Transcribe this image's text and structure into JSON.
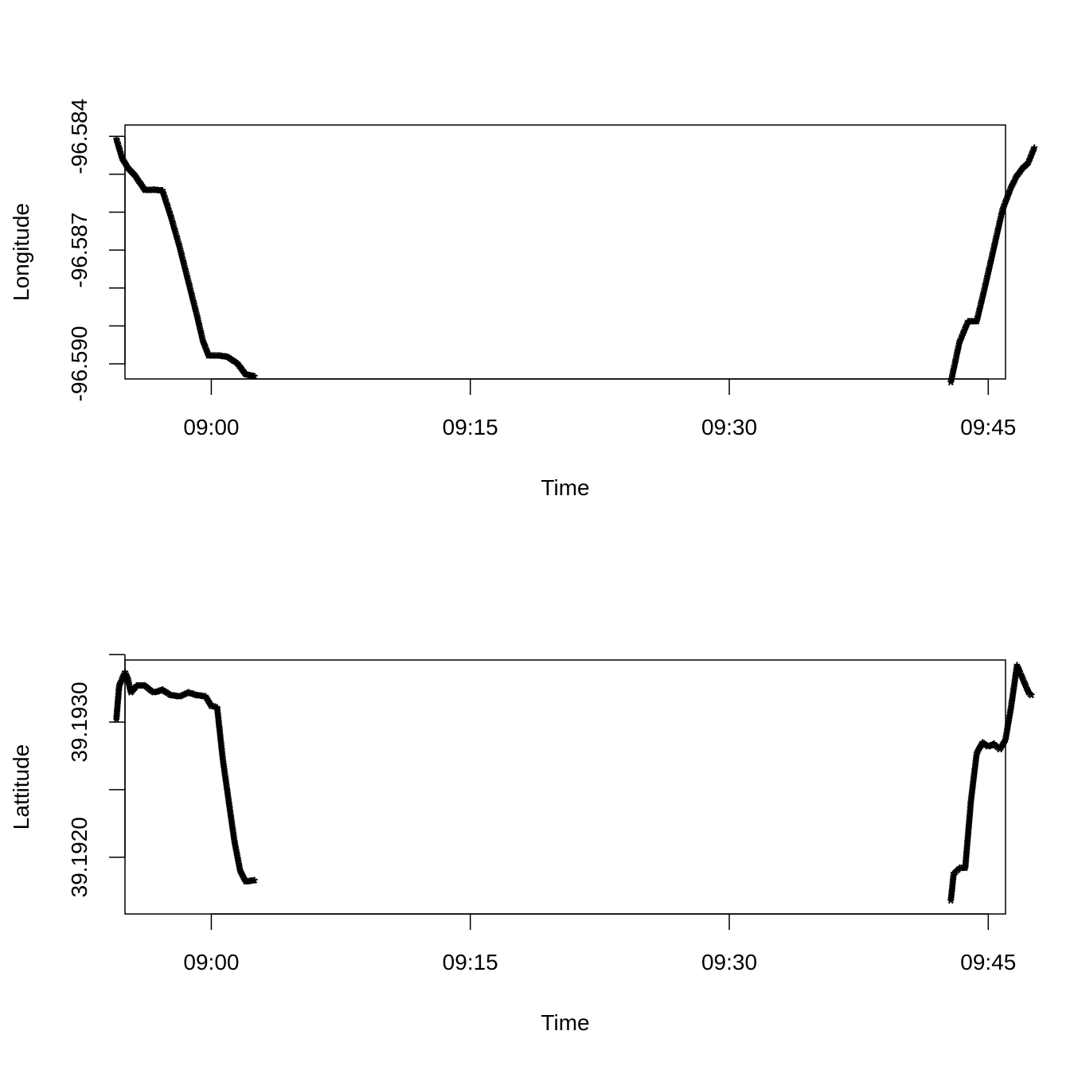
{
  "chart_data": [
    {
      "type": "scatter",
      "marker": "*",
      "xlabel": "Time",
      "ylabel": "Longitude",
      "xlim": [
        "08:55",
        "09:46"
      ],
      "ylim": [
        -96.5904,
        -96.5837
      ],
      "xticks": [
        "09:00",
        "09:15",
        "09:30",
        "09:45"
      ],
      "yticks": [
        {
          "value": -96.584,
          "label": "-96.584"
        },
        {
          "value": -96.585,
          "label": ""
        },
        {
          "value": -96.586,
          "label": ""
        },
        {
          "value": -96.587,
          "label": "-96.587"
        },
        {
          "value": -96.588,
          "label": ""
        },
        {
          "value": -96.589,
          "label": ""
        },
        {
          "value": -96.59,
          "label": "-96.590"
        }
      ],
      "grid": false,
      "series": [
        {
          "points": [
            [
              "08:54:30",
              -96.58414
            ],
            [
              "08:54:50",
              -96.58465
            ],
            [
              "08:55:10",
              -96.5849
            ],
            [
              "08:55:30",
              -96.58505
            ],
            [
              "08:56:10",
              -96.58549
            ],
            [
              "08:56:40",
              -96.58548
            ],
            [
              "08:57:10",
              -96.5855
            ],
            [
              "08:57:40",
              -96.5862
            ],
            [
              "08:58:10",
              -96.587
            ],
            [
              "08:58:40",
              -96.5879
            ],
            [
              "08:59:10",
              -96.5888
            ],
            [
              "08:59:30",
              -96.58945
            ],
            [
              "08:59:50",
              -96.58985
            ],
            [
              "09:00:30",
              -96.58985
            ],
            [
              "09:01:00",
              -96.5899
            ],
            [
              "09:01:30",
              -96.59005
            ],
            [
              "09:02:00",
              -96.59035
            ],
            [
              "09:02:30",
              -96.5904
            ],
            [
              "09:42:50",
              -96.59056
            ],
            [
              "09:43:20",
              -96.5895
            ],
            [
              "09:43:50",
              -96.58895
            ],
            [
              "09:44:20",
              -96.58895
            ],
            [
              "09:44:50",
              -96.588
            ],
            [
              "09:45:20",
              -96.587
            ],
            [
              "09:45:50",
              -96.586
            ],
            [
              "09:46:20",
              -96.5854
            ],
            [
              "09:46:40",
              -96.5851
            ],
            [
              "09:47:00",
              -96.5849
            ],
            [
              "09:47:20",
              -96.58475
            ],
            [
              "09:47:40",
              -96.58437
            ]
          ]
        }
      ]
    },
    {
      "type": "scatter",
      "marker": "*",
      "xlabel": "Time",
      "ylabel": "Lattitude",
      "xlim": [
        "08:55",
        "09:46"
      ],
      "ylim": [
        39.19158,
        39.19346
      ],
      "xticks": [
        "09:00",
        "09:15",
        "09:30",
        "09:45"
      ],
      "yticks": [
        {
          "value": 39.192,
          "label": "39.1920"
        },
        {
          "value": 39.1925,
          "label": ""
        },
        {
          "value": 39.193,
          "label": "39.1930"
        },
        {
          "value": 39.1935,
          "label": ""
        }
      ],
      "grid": false,
      "series": [
        {
          "points": [
            [
              "08:54:30",
              39.193
            ],
            [
              "08:54:40",
              39.19325
            ],
            [
              "08:55:00",
              39.19335
            ],
            [
              "08:55:10",
              39.1933
            ],
            [
              "08:55:20",
              39.1932
            ],
            [
              "08:55:40",
              39.19325
            ],
            [
              "08:56:10",
              39.19325
            ],
            [
              "08:56:40",
              39.1932
            ],
            [
              "08:57:10",
              39.19322
            ],
            [
              "08:57:40",
              39.19318
            ],
            [
              "08:58:10",
              39.19317
            ],
            [
              "08:58:40",
              39.1932
            ],
            [
              "08:59:10",
              39.19318
            ],
            [
              "08:59:40",
              39.19317
            ],
            [
              "09:00:00",
              39.1931
            ],
            [
              "09:00:20",
              39.19309
            ],
            [
              "09:00:40",
              39.1927
            ],
            [
              "09:01:00",
              39.1924
            ],
            [
              "09:01:20",
              39.1921
            ],
            [
              "09:01:40",
              39.19188
            ],
            [
              "09:02:00",
              39.1918
            ],
            [
              "09:02:30",
              39.19181
            ],
            [
              "09:42:50",
              39.19166
            ],
            [
              "09:43:00",
              39.19186
            ],
            [
              "09:43:20",
              39.1919
            ],
            [
              "09:43:40",
              39.1919
            ],
            [
              "09:44:00",
              39.1924
            ],
            [
              "09:44:20",
              39.19275
            ],
            [
              "09:44:40",
              39.19283
            ],
            [
              "09:45:00",
              39.1928
            ],
            [
              "09:45:20",
              39.19282
            ],
            [
              "09:45:40",
              39.19278
            ],
            [
              "09:46:00",
              39.19285
            ],
            [
              "09:46:20",
              39.1931
            ],
            [
              "09:46:40",
              39.1934
            ],
            [
              "09:47:00",
              39.1933
            ],
            [
              "09:47:20",
              39.1932
            ],
            [
              "09:47:30",
              39.19318
            ]
          ]
        }
      ]
    }
  ]
}
